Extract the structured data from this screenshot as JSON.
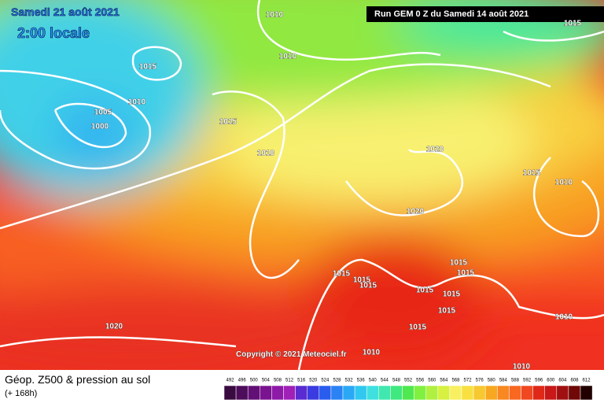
{
  "header": {
    "date": "Samedi 21 août 2021",
    "time": "2:00 locale",
    "run": "Run GEM 0 Z du Samedi 14 août 2021"
  },
  "isobar_labels": [
    "1010",
    "1010",
    "1015",
    "1010",
    "1005",
    "1000",
    "1015",
    "1010",
    "1020",
    "1015",
    "1010",
    "1020",
    "1015",
    "1015",
    "1015",
    "1015",
    "1015",
    "1015",
    "1015",
    "1015",
    "1010",
    "1020",
    "1015",
    "1010",
    "1010",
    "1015"
  ],
  "copyright": "Copyright © 2021 Meteociel.fr",
  "legend": {
    "title": "Géop. Z500 & pression au sol",
    "subtitle": "(+ 168h)",
    "scale": [
      492,
      496,
      500,
      504,
      508,
      512,
      516,
      520,
      524,
      528,
      532,
      536,
      540,
      544,
      548,
      552,
      556,
      560,
      564,
      568,
      572,
      576,
      580,
      584,
      588,
      592,
      596,
      600,
      604,
      608,
      612
    ],
    "colors": [
      "#3a0b40",
      "#4d0d5a",
      "#621075",
      "#7a1390",
      "#8e1aa8",
      "#a020b8",
      "#5a2bd0",
      "#3a3be0",
      "#2a5cf0",
      "#2a82f5",
      "#2aa8f5",
      "#30c8f0",
      "#40e0e0",
      "#40e8b0",
      "#40e880",
      "#50e850",
      "#80f040",
      "#b0f040",
      "#d8f040",
      "#f8f060",
      "#f8e040",
      "#f8c830",
      "#f8a820",
      "#f88820",
      "#f86820",
      "#f04820",
      "#e02818",
      "#c81818",
      "#a01010",
      "#700808",
      "#200000"
    ]
  }
}
